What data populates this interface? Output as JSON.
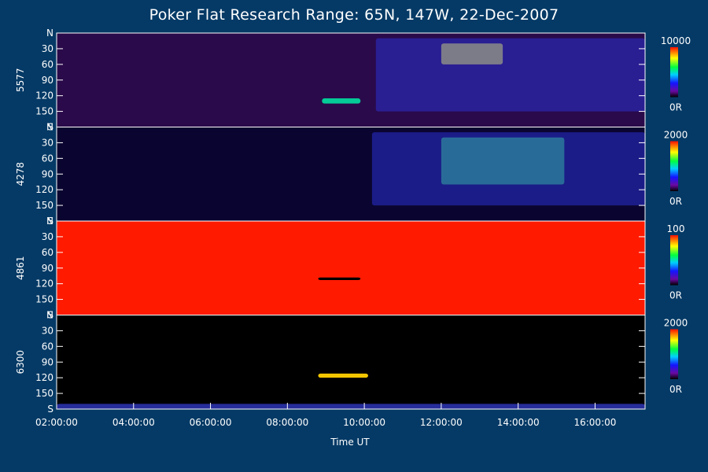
{
  "chart_data": {
    "type": "heatmap",
    "title": "Poker Flat Research Range: 65N, 147W, 22-Dec-2007",
    "xlabel": "Time UT",
    "x_ticks": [
      "02:00:00",
      "04:00:00",
      "06:00:00",
      "08:00:00",
      "10:00:00",
      "12:00:00",
      "14:00:00",
      "16:00:00"
    ],
    "x_range_hours": [
      2.0,
      17.3
    ],
    "y_ticks": [
      "N",
      "30",
      "60",
      "90",
      "120",
      "150",
      "S"
    ],
    "y_range": [
      0,
      180
    ],
    "colormap": "rainbow (black-purple-blue-cyan-green-yellow-red)",
    "panels": [
      {
        "name": "5577",
        "colorbar_max": "10000",
        "colorbar_min": "0R",
        "features": [
          {
            "desc": "bright aurora arc",
            "start": 12.0,
            "end": 13.6,
            "y_from": 20,
            "y_to": 60
          },
          {
            "desc": "diffuse aurora",
            "start": 10.3,
            "end": 17.3,
            "y_from": 10,
            "y_to": 150
          },
          {
            "desc": "moon / bright spot",
            "start": 8.9,
            "end": 9.9,
            "y_from": 125,
            "y_to": 135
          }
        ]
      },
      {
        "name": "4278",
        "colorbar_max": "2000",
        "colorbar_min": "0R",
        "features": [
          {
            "desc": "aurora arc",
            "start": 12.0,
            "end": 15.2,
            "y_from": 20,
            "y_to": 110
          },
          {
            "desc": "diffuse aurora",
            "start": 10.2,
            "end": 17.3,
            "y_from": 10,
            "y_to": 150
          }
        ]
      },
      {
        "name": "4861",
        "colorbar_max": "100",
        "colorbar_min": "0R",
        "features": [
          {
            "desc": "saturated background",
            "start": 2.0,
            "end": 17.3,
            "y_from": 0,
            "y_to": 180
          },
          {
            "desc": "moon trail",
            "start": 8.8,
            "end": 9.9,
            "y_from": 108,
            "y_to": 113
          }
        ]
      },
      {
        "name": "6300",
        "colorbar_max": "2000",
        "colorbar_min": "0R",
        "features": [
          {
            "desc": "moon arc",
            "start": 8.8,
            "end": 10.1,
            "y_from": 112,
            "y_to": 120
          },
          {
            "desc": "south horizon glow",
            "start": 2.0,
            "end": 17.3,
            "y_from": 170,
            "y_to": 180
          }
        ]
      }
    ]
  }
}
